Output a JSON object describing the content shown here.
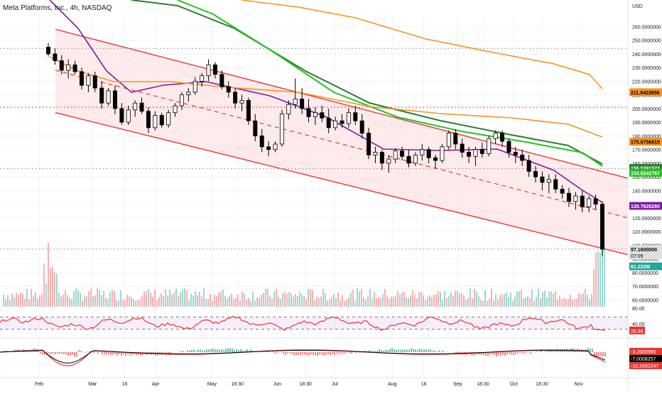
{
  "header": {
    "title": "Meta Platforms, Inc., 4h, NASDAQ"
  },
  "price_axis": {
    "currency": "USD",
    "ticks": [
      "260.0000000",
      "250.0000000",
      "240.0000000",
      "230.0000000",
      "220.0000000",
      "210.0000000",
      "200.0000000",
      "190.0000000",
      "180.0000000",
      "170.0000000",
      "160.0000000",
      "150.0000000",
      "140.0000000",
      "130.0000000",
      "120.0000000",
      "110.0000000",
      "100.0000000",
      "90.0000000",
      "80.0000000",
      "70.0000000",
      "60.0000000"
    ],
    "tick_values": [
      260,
      250,
      240,
      230,
      220,
      210,
      200,
      190,
      180,
      170,
      160,
      150,
      140,
      130,
      120,
      110,
      100,
      90,
      80,
      70,
      60
    ]
  },
  "badges": [
    {
      "value": 211.9423956,
      "label": "211.9423956",
      "color": "#f7931e",
      "text_color": "#000000"
    },
    {
      "value": 175.6756815,
      "label": "175.6756815",
      "color": "#f7931e",
      "text_color": "#000000"
    },
    {
      "value": 156.5391527,
      "label": "156.5391527",
      "color": "#2e7d32",
      "text_color": "#ffffff"
    },
    {
      "value": 153.0242767,
      "label": "153.0242767",
      "color": "#22c422",
      "text_color": "#ffffff"
    },
    {
      "value": 128.762828,
      "label": "128.7628280",
      "color": "#7b1fa2",
      "text_color": "#ffffff"
    },
    {
      "value": 97.16,
      "label": "97.1600000",
      "sub": "07:09",
      "color": "#e0e0e0",
      "text_color": "#000000"
    },
    {
      "value": 84.5,
      "label": "61.222M",
      "color": "#26a69a",
      "text_color": "#ffffff"
    }
  ],
  "rsi_axis": {
    "ticks": [
      "80.00",
      "40.00"
    ],
    "tick_values": [
      80,
      40
    ],
    "value_label": "26.99"
  },
  "macd_axis": {
    "labels": [
      "-3.2683990",
      "-7.0008257",
      "-10.2692247"
    ]
  },
  "x_axis": {
    "labels": [
      "Feb",
      "Mar",
      "16",
      "Apr",
      "May",
      "18:30",
      "Jun",
      "18:30",
      "Jul",
      "Aug",
      "16",
      "Sep",
      "18:30",
      "Oct",
      "18:30",
      "Nov"
    ],
    "positions": [
      0.0,
      0.095,
      0.152,
      0.207,
      0.307,
      0.352,
      0.423,
      0.473,
      0.525,
      0.627,
      0.683,
      0.743,
      0.788,
      0.843,
      0.893,
      0.958
    ]
  },
  "chart_data": {
    "type": "candlestick",
    "title": "Meta Platforms, Inc., 4h, NASDAQ",
    "y_range": [
      55,
      268
    ],
    "x_range": [
      "Feb",
      "Nov"
    ],
    "candles_ohlc": [
      [
        245,
        248,
        238,
        240
      ],
      [
        240,
        244,
        232,
        235
      ],
      [
        235,
        239,
        225,
        228
      ],
      [
        228,
        236,
        222,
        232
      ],
      [
        232,
        235,
        225,
        227
      ],
      [
        227,
        230,
        214,
        217
      ],
      [
        217,
        226,
        212,
        224
      ],
      [
        224,
        227,
        212,
        215
      ],
      [
        215,
        220,
        200,
        204
      ],
      [
        204,
        215,
        202,
        213
      ],
      [
        213,
        217,
        196,
        200
      ],
      [
        200,
        204,
        188,
        190
      ],
      [
        190,
        202,
        188,
        199
      ],
      [
        199,
        206,
        194,
        204
      ],
      [
        204,
        208,
        196,
        198
      ],
      [
        198,
        201,
        182,
        186
      ],
      [
        186,
        198,
        184,
        195
      ],
      [
        195,
        197,
        186,
        188
      ],
      [
        188,
        199,
        186,
        197
      ],
      [
        197,
        204,
        194,
        202
      ],
      [
        202,
        212,
        199,
        210
      ],
      [
        210,
        215,
        205,
        212
      ],
      [
        212,
        223,
        210,
        220
      ],
      [
        220,
        226,
        216,
        224
      ],
      [
        224,
        236,
        220,
        232
      ],
      [
        232,
        234,
        222,
        225
      ],
      [
        225,
        228,
        214,
        216
      ],
      [
        216,
        220,
        208,
        212
      ],
      [
        212,
        215,
        200,
        204
      ],
      [
        204,
        210,
        198,
        206
      ],
      [
        206,
        208,
        188,
        191
      ],
      [
        191,
        196,
        176,
        180
      ],
      [
        180,
        185,
        168,
        172
      ],
      [
        172,
        176,
        165,
        170
      ],
      [
        170,
        176,
        168,
        174
      ],
      [
        174,
        199,
        172,
        196
      ],
      [
        196,
        206,
        192,
        203
      ],
      [
        203,
        222,
        200,
        207
      ],
      [
        207,
        215,
        196,
        200
      ],
      [
        200,
        207,
        190,
        194
      ],
      [
        194,
        201,
        188,
        197
      ],
      [
        197,
        202,
        190,
        193
      ],
      [
        193,
        200,
        182,
        186
      ],
      [
        186,
        194,
        184,
        191
      ],
      [
        191,
        196,
        186,
        189
      ],
      [
        189,
        200,
        186,
        197
      ],
      [
        197,
        202,
        188,
        191
      ],
      [
        191,
        196,
        178,
        182
      ],
      [
        182,
        186,
        163,
        166
      ],
      [
        166,
        172,
        160,
        168
      ],
      [
        168,
        170,
        155,
        160
      ],
      [
        160,
        166,
        153,
        163
      ],
      [
        163,
        171,
        160,
        169
      ],
      [
        169,
        172,
        162,
        165
      ],
      [
        165,
        170,
        157,
        160
      ],
      [
        160,
        168,
        158,
        166
      ],
      [
        166,
        174,
        162,
        170
      ],
      [
        170,
        172,
        160,
        164
      ],
      [
        164,
        166,
        156,
        162
      ],
      [
        162,
        174,
        160,
        172
      ],
      [
        172,
        184,
        170,
        182
      ],
      [
        182,
        185,
        170,
        174
      ],
      [
        174,
        178,
        164,
        168
      ],
      [
        168,
        172,
        160,
        165
      ],
      [
        165,
        172,
        158,
        170
      ],
      [
        170,
        175,
        164,
        167
      ],
      [
        167,
        180,
        165,
        178
      ],
      [
        178,
        184,
        174,
        182
      ],
      [
        182,
        184,
        172,
        176
      ],
      [
        176,
        178,
        164,
        168
      ],
      [
        168,
        172,
        160,
        166
      ],
      [
        166,
        170,
        158,
        162
      ],
      [
        162,
        166,
        150,
        154
      ],
      [
        154,
        158,
        146,
        150
      ],
      [
        150,
        154,
        140,
        146
      ],
      [
        146,
        152,
        138,
        148
      ],
      [
        148,
        152,
        138,
        141
      ],
      [
        141,
        144,
        134,
        138
      ],
      [
        138,
        142,
        128,
        132
      ],
      [
        132,
        139,
        126,
        136
      ],
      [
        136,
        140,
        124,
        128
      ],
      [
        128,
        136,
        124,
        134
      ],
      [
        134,
        137,
        126,
        130
      ],
      [
        130,
        132,
        92,
        97
      ]
    ],
    "series": [
      {
        "name": "EMA 200",
        "color": "#2e7d32",
        "last": 156.5391527
      },
      {
        "name": "EMA 100",
        "color": "#22c422",
        "last": 153.0242767
      },
      {
        "name": "EMA 50",
        "color": "#7b1fa2",
        "last": 128.762828
      },
      {
        "name": "SMA 200",
        "color": "#f7931e",
        "last": 211.9423956
      },
      {
        "name": "SMA 100",
        "color": "#f7931e",
        "last": 175.6756815
      }
    ],
    "annotations": {
      "channel_upper": [
        [
          0.0,
          258
        ],
        [
          1.0,
          149
        ]
      ],
      "channel_mid": [
        [
          0.0,
          228
        ],
        [
          1.0,
          120
        ]
      ],
      "channel_lower": [
        [
          0.0,
          197
        ],
        [
          1.0,
          93
        ]
      ],
      "horizontal_levels": [
        244,
        201,
        156,
        97.16
      ],
      "volume_last": "61.222M",
      "rsi_last": 26.99,
      "macd": [
        -3.268399,
        -7.0008257,
        -10.2692247
      ]
    },
    "colors": {
      "up": "#ffffff",
      "down": "#000000",
      "channel": "#e53935",
      "channel_fill": "#fde8e8"
    }
  }
}
